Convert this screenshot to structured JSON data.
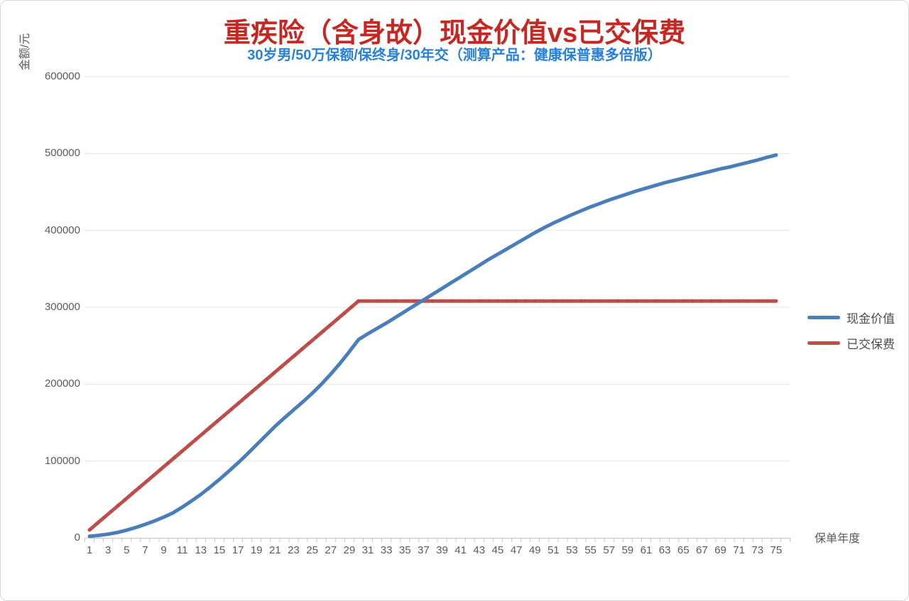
{
  "colors": {
    "title": "#c52722",
    "subtitle": "#2880d8",
    "axis_text": "#5a5a5a",
    "grid": "#e4e4e4",
    "axis_line": "#c4c4c4",
    "series_blue": "#4a7ebb",
    "series_red": "#bf4e4a",
    "series_red_marker": "#a8423f"
  },
  "chart_data": {
    "type": "line",
    "title": "重疾险（含身故）现金价值vs已交保费",
    "subtitle": "30岁男/50万保额/保终身/30年交（测算产品：健康保普惠多倍版）",
    "xlabel": "保单年度",
    "ylabel": "金额/元",
    "x_range": [
      1,
      75
    ],
    "x_tick_labels": [
      1,
      3,
      5,
      7,
      9,
      11,
      13,
      15,
      17,
      19,
      21,
      23,
      25,
      27,
      29,
      31,
      33,
      35,
      37,
      39,
      41,
      43,
      45,
      47,
      49,
      51,
      53,
      55,
      57,
      59,
      61,
      63,
      65,
      67,
      69,
      71,
      73,
      75
    ],
    "ylim": [
      0,
      600000
    ],
    "y_ticks": [
      0,
      100000,
      200000,
      300000,
      400000,
      500000,
      600000
    ],
    "grid": true,
    "legend_position": "right",
    "series": [
      {
        "name": "现金价值",
        "color": "#4a7ebb",
        "values": [
          2000,
          3200,
          4800,
          7000,
          10000,
          13500,
          17500,
          22000,
          27000,
          32500,
          40000,
          48000,
          56500,
          66000,
          76000,
          86500,
          97500,
          109000,
          121000,
          133000,
          145000,
          156000,
          166500,
          177000,
          188000,
          200000,
          213000,
          227000,
          242000,
          258000,
          265500,
          272500,
          279500,
          287000,
          294500,
          302000,
          309500,
          317000,
          324500,
          332000,
          339500,
          347000,
          354500,
          362000,
          369000,
          376000,
          383000,
          390000,
          397000,
          403500,
          409500,
          415000,
          420500,
          425500,
          430500,
          435000,
          439500,
          443500,
          447500,
          451500,
          455000,
          458500,
          462000,
          465000,
          468000,
          471000,
          474000,
          477000,
          480000,
          482500,
          485500,
          488500,
          491500,
          495000,
          498000
        ]
      },
      {
        "name": "已交保费",
        "color": "#bf4e4a",
        "marker_color": "#a8423f",
        "values": [
          10270,
          20540,
          30810,
          41080,
          51350,
          61620,
          71890,
          82160,
          92430,
          102700,
          112970,
          123240,
          133510,
          143780,
          154050,
          164320,
          174590,
          184860,
          195130,
          205400,
          215670,
          225940,
          236210,
          246480,
          256750,
          267020,
          277290,
          287560,
          297830,
          308100,
          308100,
          308100,
          308100,
          308100,
          308100,
          308100,
          308100,
          308100,
          308100,
          308100,
          308100,
          308100,
          308100,
          308100,
          308100,
          308100,
          308100,
          308100,
          308100,
          308100,
          308100,
          308100,
          308100,
          308100,
          308100,
          308100,
          308100,
          308100,
          308100,
          308100,
          308100,
          308100,
          308100,
          308100,
          308100,
          308100,
          308100,
          308100,
          308100,
          308100,
          308100,
          308100,
          308100,
          308100,
          308100
        ]
      }
    ]
  }
}
